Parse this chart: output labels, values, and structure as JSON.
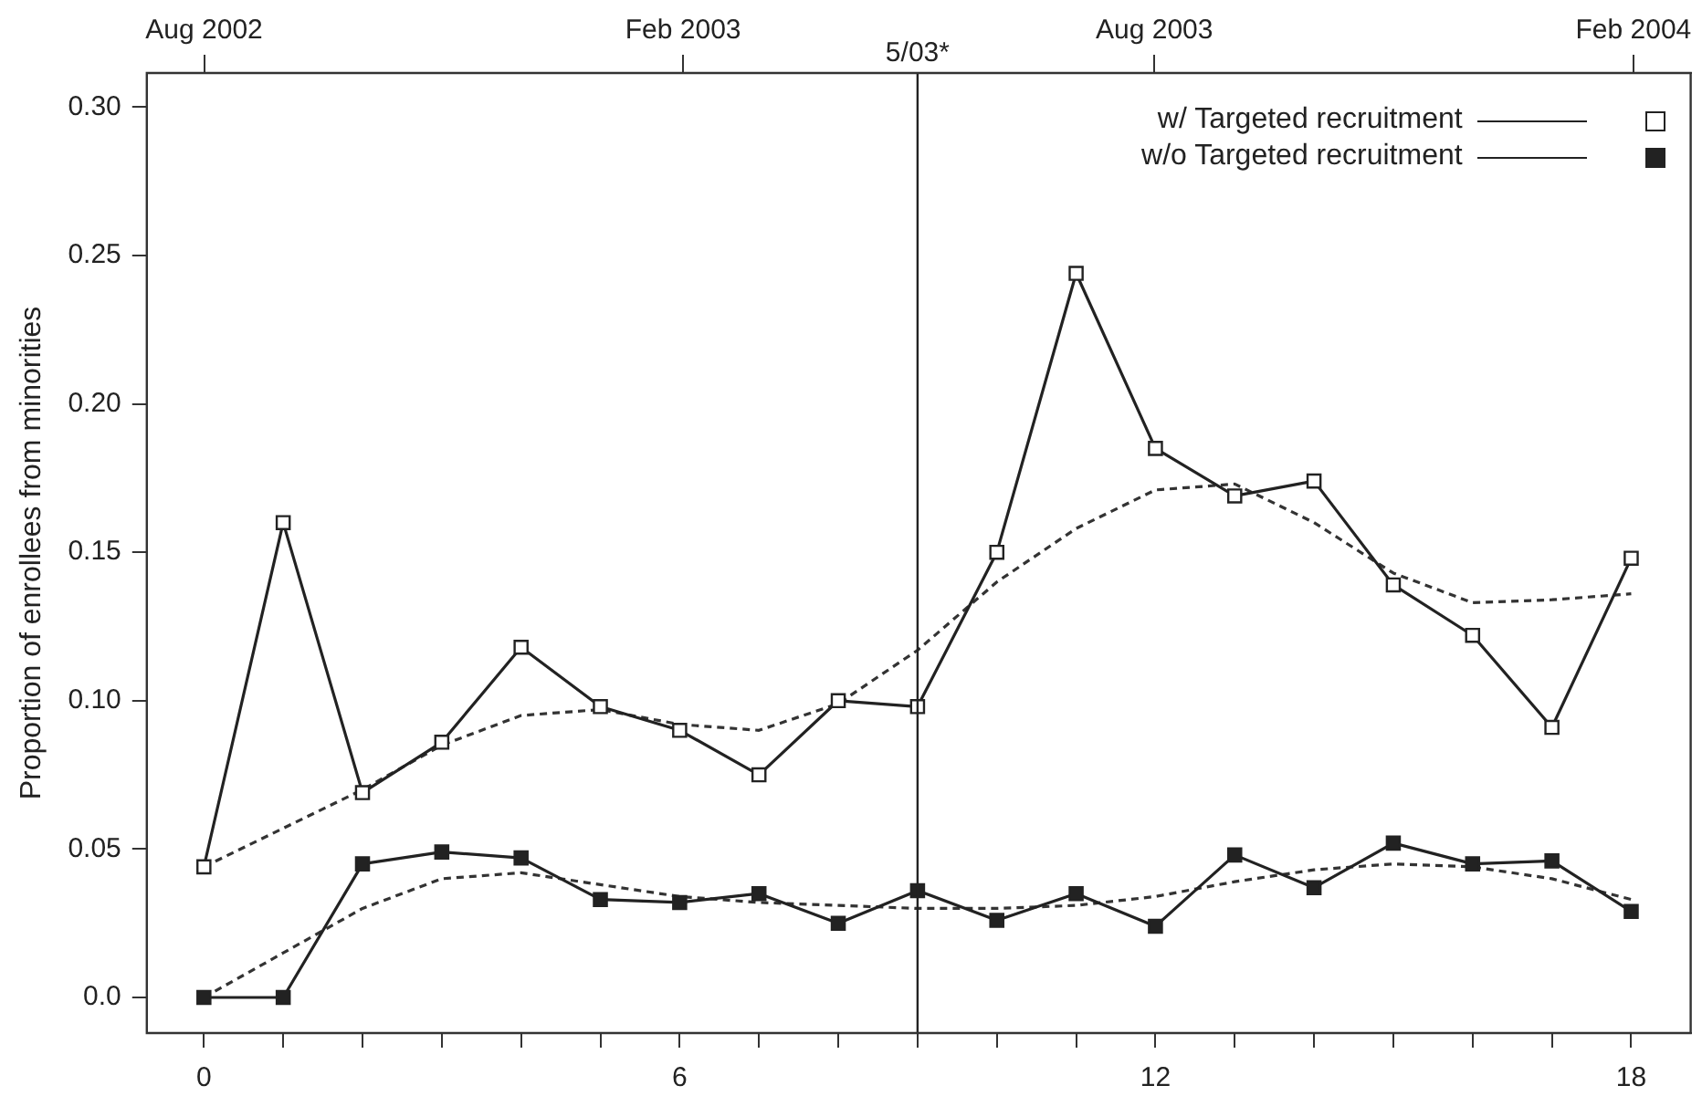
{
  "chart_data": {
    "type": "line",
    "ylabel": "Proportion of enrollees from minorities",
    "x": [
      0,
      1,
      2,
      3,
      4,
      5,
      6,
      7,
      8,
      9,
      10,
      11,
      12,
      13,
      14,
      15,
      16,
      17,
      18
    ],
    "series": [
      {
        "name": "w/ Targeted recruitment",
        "color": "#222222",
        "marker": "square",
        "colors": [
          "#ffffff",
          "#ffffff",
          "#ffffff",
          "#ffffff",
          "#ffffff",
          "#ffffff",
          "#ffffff",
          "#ffffff",
          "#ffffff",
          "#ffffff",
          "#ffffff",
          "#ffffff",
          "#ffffff",
          "#ffffff",
          "#ffffff",
          "#ffffff",
          "#ffffff",
          "#ffffff",
          "#ffffff"
        ],
        "line_style": "solid",
        "values": [
          0.044,
          0.16,
          0.069,
          0.086,
          0.118,
          0.098,
          0.09,
          0.075,
          0.1,
          0.098,
          0.15,
          0.244,
          0.185,
          0.169,
          0.174,
          0.139,
          0.122,
          0.091,
          0.148
        ]
      },
      {
        "name": "w/o Targeted recruitment",
        "color": "#222222",
        "marker": "square",
        "line_style": "solid",
        "values": [
          0,
          0,
          0.045,
          0.049,
          0.047,
          0.033,
          0.032,
          0.035,
          0.025,
          0.036,
          0.026,
          0.035,
          0.024,
          0.048,
          0.037,
          0.052,
          0.045,
          0.046,
          0.029
        ]
      },
      {
        "color": "#333333",
        "marker": "none",
        "line_style": "dashed",
        "x": [
          0,
          1,
          2,
          3,
          4,
          5,
          6,
          7,
          8,
          9,
          10,
          11,
          12,
          13,
          14,
          15,
          16,
          17,
          18
        ],
        "values": [
          0.044,
          0.057,
          0.07,
          0.085,
          0.095,
          0.097,
          0.092,
          0.09,
          0.099,
          0.117,
          0.14,
          0.158,
          0.171,
          0.173,
          0.16,
          0.143,
          0.133,
          0.134,
          0.136
        ]
      },
      {
        "color": "#333333",
        "marker": "none",
        "line_style": "dashed",
        "x": [
          0,
          1,
          2,
          3,
          4,
          5,
          6,
          7,
          8,
          9,
          10,
          11,
          12,
          13,
          14,
          15,
          16,
          17,
          18
        ],
        "values": [
          0,
          0.015,
          0.03,
          0.04,
          0.042,
          0.038,
          0.034,
          0.032,
          0.031,
          0.03,
          0.03,
          0.031,
          0.034,
          0.039,
          0.043,
          0.045,
          0.044,
          0.04,
          0.033
        ]
      }
    ],
    "xlim": [
      -0.72,
      18.75
    ],
    "xticks": [
      0,
      {
        "value": 1,
        "label": null
      },
      {
        "value": 2,
        "label": null
      },
      {
        "value": 3,
        "label": null
      },
      {
        "value": 4,
        "label": null
      },
      {
        "value": 5,
        "label": null
      },
      6,
      {
        "value": 7,
        "label": null
      },
      {
        "value": 8,
        "label": null
      },
      {
        "value": 9,
        "label": null
      },
      {
        "value": 10,
        "label": null
      },
      {
        "value": 11,
        "label": null
      },
      12,
      {
        "value": 13,
        "label": null
      },
      {
        "value": 14,
        "label": null
      },
      {
        "value": 15,
        "label": null
      },
      {
        "value": 16,
        "label": null
      },
      {
        "value": 17,
        "label": null
      },
      18
    ],
    "x2lim": [
      "2002-07-10",
      "2004-02-23"
    ],
    "x2ticks": [
      {
        "value": "2002-08-01",
        "label": "Aug 2002"
      },
      {
        "value": "2003-02-01",
        "label": "Feb 2003"
      },
      {
        "value": "2003-08-01",
        "label": "Aug 2003"
      },
      {
        "value": "2004-02-01",
        "label": "Feb 2004"
      }
    ],
    "ylim": [
      -0.012,
      0.3115
    ],
    "yticks": [
      {
        "value": 0,
        "label": "0.0"
      },
      0.05,
      {
        "value": 0.1,
        "label": "0.10"
      },
      0.15,
      {
        "value": 0.2,
        "label": "0.20"
      },
      0.25,
      {
        "value": 0.3,
        "label": "0.30"
      }
    ],
    "ref_lines": [
      {
        "axis": "x",
        "value": 9,
        "color": "#222222"
      }
    ],
    "annotations": [
      "5/03*"
    ],
    "legend": "top right",
    "grid": false
  }
}
